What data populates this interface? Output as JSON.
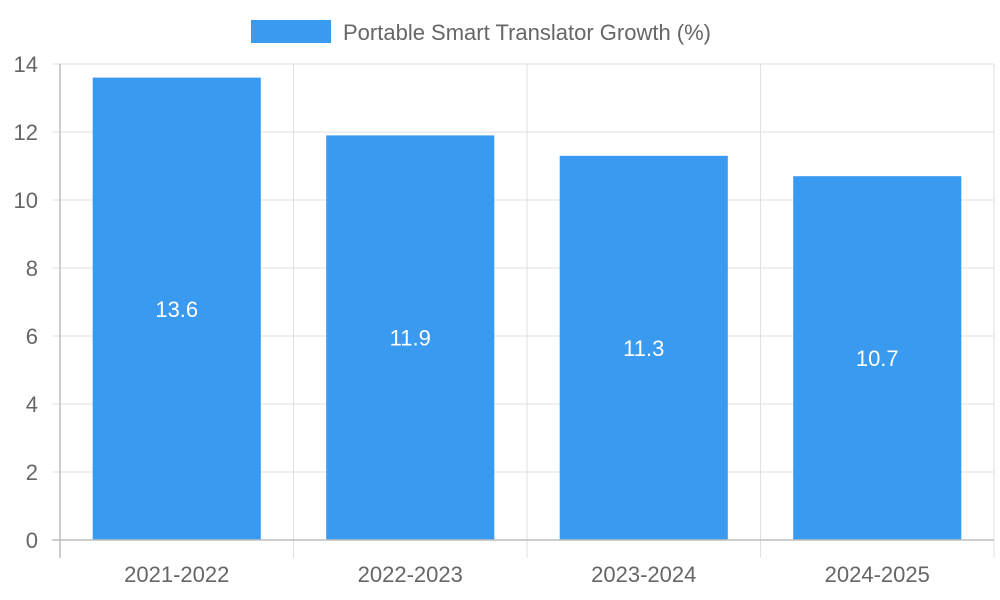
{
  "chart_data": {
    "type": "bar",
    "title": "",
    "xlabel": "",
    "ylabel": "",
    "categories": [
      "2021-2022",
      "2022-2023",
      "2023-2024",
      "2024-2025"
    ],
    "series": [
      {
        "name": "Portable Smart Translator Growth (%)",
        "values": [
          13.6,
          11.9,
          11.3,
          10.7
        ],
        "color": "#3a9af0"
      }
    ],
    "ylim": [
      0,
      14
    ],
    "yticks": [
      0,
      2,
      4,
      6,
      8,
      10,
      12,
      14
    ],
    "ytick_labels": [
      "0",
      "2",
      "4",
      "6",
      "8",
      "10",
      "12",
      "14"
    ],
    "data_labels": [
      "13.6",
      "11.9",
      "11.3",
      "10.7"
    ],
    "grid": true,
    "legend_position": "top-center"
  }
}
